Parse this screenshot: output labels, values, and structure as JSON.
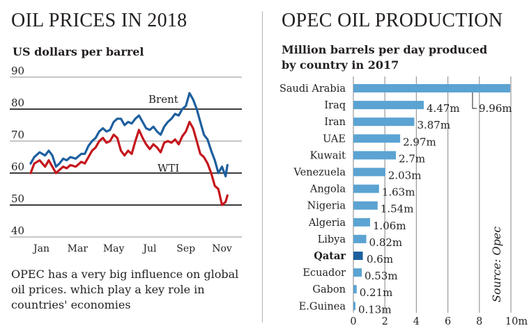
{
  "left": {
    "title": "OIL PRICES IN 2018",
    "subtitle": "US dollars per barrel",
    "note": "OPEC has a very big influence on global oil prices. which play a key role in countries' economies"
  },
  "right": {
    "title": "OPEC OIL PRODUCTION",
    "subtitle": "Million barrels per day produced by country in 2017",
    "source": "Source: Opec"
  },
  "chart_data": [
    {
      "type": "line",
      "title": "OIL PRICES IN 2018",
      "ylabel": "US dollars per barrel",
      "ylim": [
        40,
        90
      ],
      "yticks": [
        "90",
        "80",
        "70",
        "60",
        "50",
        "40"
      ],
      "xlim": [
        1,
        12.7
      ],
      "xticks": [
        {
          "label": "Jan",
          "month": 1.6
        },
        {
          "label": "Mar",
          "month": 3.6
        },
        {
          "label": "May",
          "month": 5.6
        },
        {
          "label": "Jul",
          "month": 7.6
        },
        {
          "label": "Sep",
          "month": 9.6
        },
        {
          "label": "Nov",
          "month": 11.6
        }
      ],
      "grid": "horizontal",
      "series": [
        {
          "name": "Brent",
          "color": "#1d5f9e",
          "points": [
            [
              1.0,
              63
            ],
            [
              1.2,
              65
            ],
            [
              1.5,
              66.5
            ],
            [
              1.8,
              65.5
            ],
            [
              2.0,
              67
            ],
            [
              2.2,
              65.5
            ],
            [
              2.4,
              62
            ],
            [
              2.6,
              63
            ],
            [
              2.8,
              64.5
            ],
            [
              3.0,
              64
            ],
            [
              3.2,
              65
            ],
            [
              3.5,
              64.5
            ],
            [
              3.8,
              66
            ],
            [
              4.0,
              66
            ],
            [
              4.2,
              68.5
            ],
            [
              4.4,
              70
            ],
            [
              4.6,
              71
            ],
            [
              4.8,
              73
            ],
            [
              5.0,
              74
            ],
            [
              5.2,
              73
            ],
            [
              5.4,
              73.5
            ],
            [
              5.6,
              76
            ],
            [
              5.8,
              77
            ],
            [
              6.0,
              77
            ],
            [
              6.2,
              75
            ],
            [
              6.4,
              76
            ],
            [
              6.6,
              75.5
            ],
            [
              6.8,
              77
            ],
            [
              7.0,
              78
            ],
            [
              7.2,
              76
            ],
            [
              7.4,
              74
            ],
            [
              7.6,
              73.5
            ],
            [
              7.8,
              74.5
            ],
            [
              8.0,
              73
            ],
            [
              8.2,
              72
            ],
            [
              8.4,
              74.5
            ],
            [
              8.6,
              76
            ],
            [
              8.8,
              77
            ],
            [
              9.0,
              78.5
            ],
            [
              9.2,
              78
            ],
            [
              9.4,
              80
            ],
            [
              9.6,
              81
            ],
            [
              9.8,
              85
            ],
            [
              10.0,
              83
            ],
            [
              10.2,
              80
            ],
            [
              10.4,
              76
            ],
            [
              10.6,
              72
            ],
            [
              10.8,
              70.5
            ],
            [
              11.0,
              67
            ],
            [
              11.2,
              64
            ],
            [
              11.4,
              60
            ],
            [
              11.6,
              62
            ],
            [
              11.8,
              59
            ],
            [
              11.9,
              62.5
            ]
          ]
        },
        {
          "name": "WTI",
          "color": "#c4161c",
          "points": [
            [
              1.0,
              60
            ],
            [
              1.2,
              63
            ],
            [
              1.5,
              64
            ],
            [
              1.8,
              62
            ],
            [
              2.0,
              64
            ],
            [
              2.2,
              62
            ],
            [
              2.4,
              60
            ],
            [
              2.6,
              61
            ],
            [
              2.8,
              62
            ],
            [
              3.0,
              61.5
            ],
            [
              3.2,
              62.5
            ],
            [
              3.5,
              62
            ],
            [
              3.8,
              63.5
            ],
            [
              4.0,
              63
            ],
            [
              4.2,
              65
            ],
            [
              4.4,
              67
            ],
            [
              4.6,
              68
            ],
            [
              4.8,
              70
            ],
            [
              5.0,
              71
            ],
            [
              5.2,
              69.5
            ],
            [
              5.4,
              70
            ],
            [
              5.6,
              72
            ],
            [
              5.8,
              71
            ],
            [
              6.0,
              67
            ],
            [
              6.2,
              65.5
            ],
            [
              6.4,
              67
            ],
            [
              6.6,
              66
            ],
            [
              6.8,
              70
            ],
            [
              7.0,
              73.5
            ],
            [
              7.2,
              71
            ],
            [
              7.4,
              69
            ],
            [
              7.6,
              67.5
            ],
            [
              7.8,
              69
            ],
            [
              8.0,
              68
            ],
            [
              8.2,
              66.5
            ],
            [
              8.4,
              69.5
            ],
            [
              8.6,
              70
            ],
            [
              8.8,
              69.5
            ],
            [
              9.0,
              70.5
            ],
            [
              9.2,
              69
            ],
            [
              9.4,
              71.5
            ],
            [
              9.6,
              73
            ],
            [
              9.8,
              76
            ],
            [
              10.0,
              74
            ],
            [
              10.2,
              70
            ],
            [
              10.4,
              66
            ],
            [
              10.6,
              65
            ],
            [
              10.8,
              63
            ],
            [
              11.0,
              60
            ],
            [
              11.2,
              56
            ],
            [
              11.4,
              55
            ],
            [
              11.6,
              50
            ],
            [
              11.8,
              51
            ],
            [
              11.9,
              53
            ]
          ]
        }
      ]
    },
    {
      "type": "bar",
      "title": "OPEC OIL PRODUCTION",
      "subtitle": "Million barrels per day produced by country in 2017",
      "orientation": "horizontal",
      "categories": [
        "Saudi Arabia",
        "Iraq",
        "Iran",
        "UAE",
        "Kuwait",
        "Venezuela",
        "Angola",
        "Nigeria",
        "Algeria",
        "Libya",
        "Qatar",
        "Ecuador",
        "Gabon",
        "E.Guinea"
      ],
      "values": [
        9.96,
        4.47,
        3.87,
        2.97,
        2.7,
        2.03,
        1.63,
        1.54,
        1.06,
        0.82,
        0.6,
        0.53,
        0.21,
        0.13
      ],
      "data_labels": [
        "9.96m",
        "4.47m",
        "3.87m",
        "2.97m",
        "2.7m",
        "2.03m",
        "1.63m",
        "1.54m",
        "1.06m",
        "0.82m",
        "0.6m",
        "0.53m",
        "0.21m",
        "0.13m"
      ],
      "highlight": "Qatar",
      "bar_color": "#5ba3d2",
      "highlight_color": "#1d5f9e",
      "xticks": [
        "0",
        "2",
        "4",
        "6",
        "8",
        "10m"
      ],
      "xlim": [
        0,
        10
      ]
    }
  ]
}
